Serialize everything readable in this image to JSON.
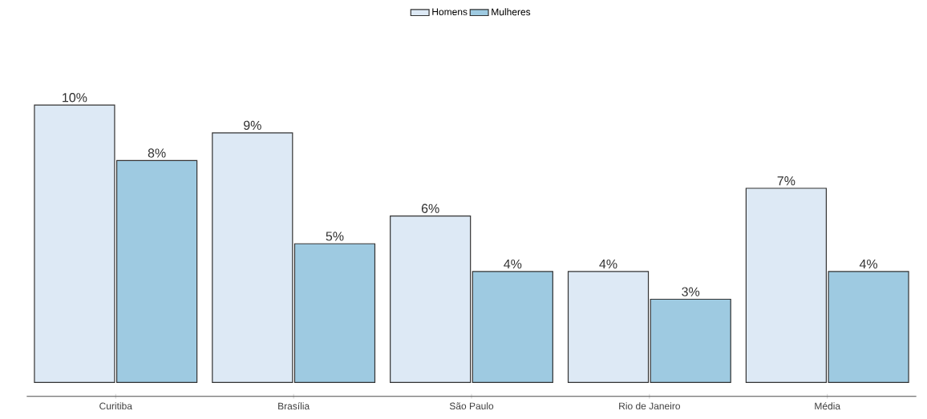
{
  "chart_data": {
    "type": "bar",
    "categories": [
      "Curitiba",
      "Brasília",
      "São Paulo",
      "Rio de Janeiro",
      "Média"
    ],
    "series": [
      {
        "name": "Homens",
        "color": "#dde9f5",
        "values": [
          10,
          9,
          6,
          4,
          7
        ],
        "value_labels": [
          "10%",
          "9%",
          "6%",
          "4%",
          "7%"
        ]
      },
      {
        "name": "Mulheres",
        "color": "#9ecae1",
        "values": [
          8,
          5,
          4,
          3,
          4
        ],
        "value_labels": [
          "8%",
          "5%",
          "4%",
          "3%",
          "4%"
        ]
      }
    ],
    "legend": "top",
    "tick_labels": "x"
  }
}
